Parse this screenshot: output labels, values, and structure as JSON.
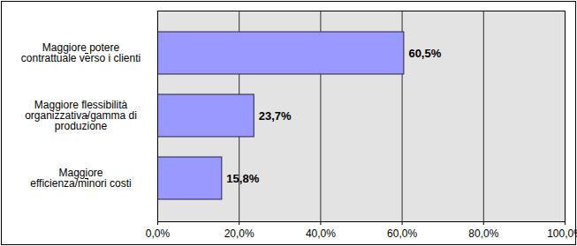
{
  "chart_data": {
    "type": "bar",
    "orientation": "horizontal",
    "categories": [
      "Maggiore potere\ncontrattuale verso i clienti",
      "Maggiore flessibilità\norganizzativa/gamma di\nproduzione",
      "Maggiore\nefficienza/minori costi"
    ],
    "values": [
      60.5,
      23.7,
      15.8
    ],
    "value_labels": [
      "60,5%",
      "23,7%",
      "15,8%"
    ],
    "color": "#9999ff",
    "xlim": [
      0,
      100
    ],
    "xticks": [
      {
        "value": 0,
        "label": "0,0%"
      },
      {
        "value": 20,
        "label": "20,0%"
      },
      {
        "value": 40,
        "label": "40,0%"
      },
      {
        "value": 60,
        "label": "60,0%"
      },
      {
        "value": 80,
        "label": "80,0%"
      },
      {
        "value": 100,
        "label": "100,0%"
      }
    ],
    "grid": true,
    "data_labels": true
  }
}
